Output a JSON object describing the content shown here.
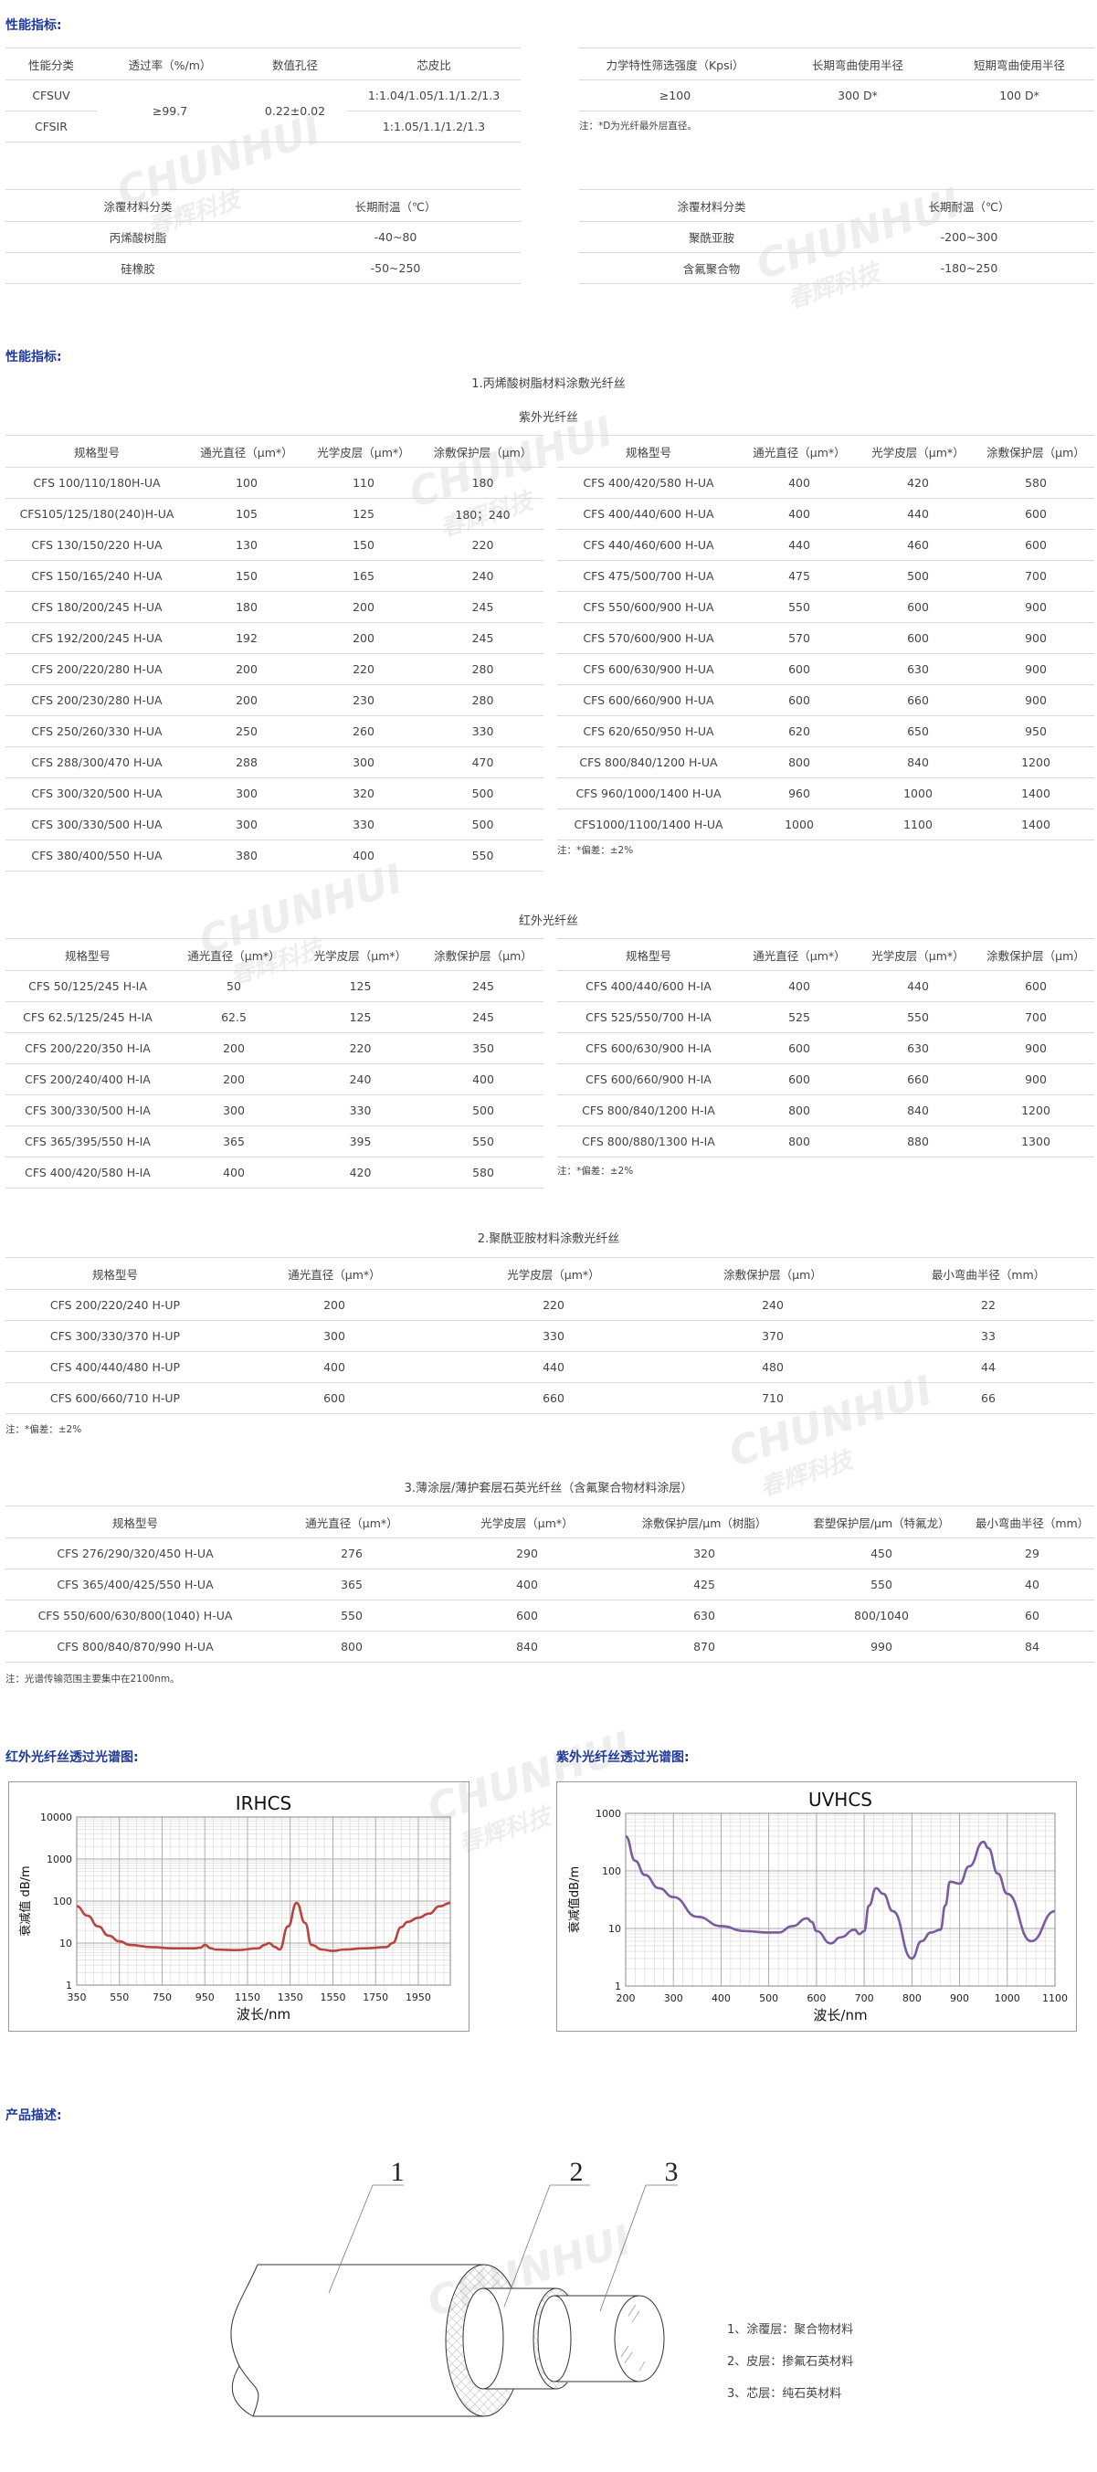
{
  "watermark": {
    "en": "CHUNHUI",
    "cn": "春辉科技"
  },
  "section1": {
    "heading": "性能指标:",
    "optical_table": {
      "headers": [
        "性能分类",
        "透过率（%/m）",
        "数值孔径",
        "芯皮比"
      ],
      "rows": [
        {
          "type": "CFSUV",
          "ratio": "1:1.04/1.05/1.1/1.2/1.3"
        },
        {
          "type": "CFSIR",
          "ratio": "1:1.05/1.1/1.2/1.3"
        }
      ],
      "transmittance": "≥99.7",
      "na": "0.22±0.02"
    },
    "mech_table": {
      "headers": [
        "力学特性筛选强度（Kpsi）",
        "长期弯曲使用半径",
        "短期弯曲使用半径"
      ],
      "row": [
        "≥100",
        "300 D*",
        "100 D*"
      ],
      "note": "注：*D为光纤最外层直径。"
    },
    "coating_left": {
      "headers": [
        "涂覆材料分类",
        "长期耐温（℃）"
      ],
      "rows": [
        [
          "丙烯酸树脂",
          "-40~80"
        ],
        [
          "硅橡胶",
          "-50~250"
        ]
      ]
    },
    "coating_right": {
      "headers": [
        "涂覆材料分类",
        "长期耐温（℃）"
      ],
      "rows": [
        [
          "聚酰亚胺",
          "-200~300"
        ],
        [
          "含氟聚合物",
          "-180~250"
        ]
      ]
    }
  },
  "section2": {
    "heading": "性能指标:",
    "group1_title": "1.丙烯酸树脂材料涂敷光纤丝",
    "uv_title": "紫外光纤丝",
    "headers4": [
      "规格型号",
      "通光直径（μm*）",
      "光学皮层（μm*）",
      "涂敷保护层（μm）"
    ],
    "uv_left": [
      [
        "CFS 100/110/180H-UA",
        "100",
        "110",
        "180"
      ],
      [
        "CFS105/125/180(240)H-UA",
        "105",
        "125",
        "180；240"
      ],
      [
        "CFS 130/150/220 H-UA",
        "130",
        "150",
        "220"
      ],
      [
        "CFS 150/165/240 H-UA",
        "150",
        "165",
        "240"
      ],
      [
        "CFS 180/200/245 H-UA",
        "180",
        "200",
        "245"
      ],
      [
        "CFS 192/200/245 H-UA",
        "192",
        "200",
        "245"
      ],
      [
        "CFS 200/220/280 H-UA",
        "200",
        "220",
        "280"
      ],
      [
        "CFS 200/230/280 H-UA",
        "200",
        "230",
        "280"
      ],
      [
        "CFS 250/260/330 H-UA",
        "250",
        "260",
        "330"
      ],
      [
        "CFS 288/300/470 H-UA",
        "288",
        "300",
        "470"
      ],
      [
        "CFS 300/320/500 H-UA",
        "300",
        "320",
        "500"
      ],
      [
        "CFS 300/330/500 H-UA",
        "300",
        "330",
        "500"
      ],
      [
        "CFS 380/400/550 H-UA",
        "380",
        "400",
        "550"
      ]
    ],
    "uv_right": [
      [
        "CFS 400/420/580 H-UA",
        "400",
        "420",
        "580"
      ],
      [
        "CFS 400/440/600 H-UA",
        "400",
        "440",
        "600"
      ],
      [
        "CFS 440/460/600 H-UA",
        "440",
        "460",
        "600"
      ],
      [
        "CFS 475/500/700 H-UA",
        "475",
        "500",
        "700"
      ],
      [
        "CFS 550/600/900 H-UA",
        "550",
        "600",
        "900"
      ],
      [
        "CFS 570/600/900 H-UA",
        "570",
        "600",
        "900"
      ],
      [
        "CFS 600/630/900 H-UA",
        "600",
        "630",
        "900"
      ],
      [
        "CFS 600/660/900 H-UA",
        "600",
        "660",
        "900"
      ],
      [
        "CFS 620/650/950 H-UA",
        "620",
        "650",
        "950"
      ],
      [
        "CFS 800/840/1200 H-UA",
        "800",
        "840",
        "1200"
      ],
      [
        "CFS 960/1000/1400 H-UA",
        "960",
        "1000",
        "1400"
      ],
      [
        "CFS1000/1100/1400 H-UA",
        "1000",
        "1100",
        "1400"
      ]
    ],
    "uv_note": "注：*偏差：±2%",
    "ir_title": "红外光纤丝",
    "ir_left": [
      [
        "CFS 50/125/245 H-IA",
        "50",
        "125",
        "245"
      ],
      [
        "CFS 62.5/125/245 H-IA",
        "62.5",
        "125",
        "245"
      ],
      [
        "CFS 200/220/350 H-IA",
        "200",
        "220",
        "350"
      ],
      [
        "CFS 200/240/400 H-IA",
        "200",
        "240",
        "400"
      ],
      [
        "CFS 300/330/500 H-IA",
        "300",
        "330",
        "500"
      ],
      [
        "CFS 365/395/550 H-IA",
        "365",
        "395",
        "550"
      ],
      [
        "CFS 400/420/580 H-IA",
        "400",
        "420",
        "580"
      ]
    ],
    "ir_right": [
      [
        "CFS 400/440/600 H-IA",
        "400",
        "440",
        "600"
      ],
      [
        "CFS 525/550/700 H-IA",
        "525",
        "550",
        "700"
      ],
      [
        "CFS 600/630/900 H-IA",
        "600",
        "630",
        "900"
      ],
      [
        "CFS 600/660/900 H-IA",
        "600",
        "660",
        "900"
      ],
      [
        "CFS 800/840/1200 H-IA",
        "800",
        "840",
        "1200"
      ],
      [
        "CFS 800/880/1300 H-IA",
        "800",
        "880",
        "1300"
      ]
    ],
    "ir_note": "注：*偏差：±2%",
    "group2_title": "2.聚酰亚胺材料涂敷光纤丝",
    "pi_headers": [
      "规格型号",
      "通光直径（μm*）",
      "光学皮层（μm*）",
      "涂敷保护层（μm）",
      "最小弯曲半径（mm）"
    ],
    "pi_rows": [
      [
        "CFS 200/220/240 H-UP",
        "200",
        "220",
        "240",
        "22"
      ],
      [
        "CFS 300/330/370 H-UP",
        "300",
        "330",
        "370",
        "33"
      ],
      [
        "CFS 400/440/480 H-UP",
        "400",
        "440",
        "480",
        "44"
      ],
      [
        "CFS 600/660/710 H-UP",
        "600",
        "660",
        "710",
        "66"
      ]
    ],
    "pi_note": "注：*偏差：±2%",
    "group3_title": "3.薄涂层/薄护套层石英光纤丝（含氟聚合物材料涂层）",
    "fp_headers": [
      "规格型号",
      "通光直径（μm*）",
      "光学皮层（μm*）",
      "涂敷保护层/μm（树脂）",
      "套塑保护层/μm（特氟龙）",
      "最小弯曲半径（mm）"
    ],
    "fp_rows": [
      [
        "CFS 276/290/320/450 H-UA",
        "276",
        "290",
        "320",
        "450",
        "29"
      ],
      [
        "CFS 365/400/425/550 H-UA",
        "365",
        "400",
        "425",
        "550",
        "40"
      ],
      [
        "CFS 550/600/630/800(1040) H-UA",
        "550",
        "600",
        "630",
        "800/1040",
        "60"
      ],
      [
        "CFS 800/840/870/990 H-UA",
        "800",
        "840",
        "870",
        "990",
        "84"
      ]
    ],
    "fp_note": "注：光谱传输范围主要集中在2100nm。"
  },
  "charts_headings": {
    "ir": "红外光纤丝透过光谱图:",
    "uv": "紫外光纤丝透过光谱图:"
  },
  "chart_data": [
    {
      "type": "line",
      "title": "IRHCS",
      "xlabel": "波长/nm",
      "ylabel": "衰减值  dB/m",
      "x_ticks": [
        350,
        550,
        750,
        950,
        1150,
        1350,
        1550,
        1750,
        1950
      ],
      "y_ticks": [
        1,
        10,
        100,
        1000,
        10000
      ],
      "xlim": [
        350,
        2100
      ],
      "ylim": [
        1,
        10000
      ],
      "y_scale": "log",
      "grid": true,
      "color": "#b8443f",
      "x": [
        350,
        400,
        450,
        500,
        550,
        600,
        700,
        800,
        900,
        930,
        950,
        980,
        1000,
        1100,
        1200,
        1230,
        1250,
        1280,
        1300,
        1340,
        1380,
        1420,
        1450,
        1500,
        1550,
        1600,
        1700,
        1800,
        1830,
        1870,
        1900,
        1950,
        2000,
        2050,
        2100
      ],
      "y": [
        75,
        45,
        25,
        15,
        11,
        9,
        8,
        7.5,
        7.5,
        7.8,
        9,
        7.5,
        7,
        6.8,
        7.5,
        9,
        10,
        8,
        7,
        25,
        90,
        30,
        9,
        7,
        6.5,
        7,
        7.5,
        8,
        10,
        24,
        32,
        40,
        50,
        75,
        90
      ]
    },
    {
      "type": "line",
      "title": "UVHCS",
      "xlabel": "波长/nm",
      "ylabel": "衰减值dB/m",
      "x_ticks": [
        200,
        300,
        400,
        500,
        600,
        700,
        800,
        900,
        1000,
        1100
      ],
      "y_ticks": [
        1,
        10,
        100,
        1000
      ],
      "xlim": [
        200,
        1100
      ],
      "ylim": [
        1,
        1000
      ],
      "y_scale": "log",
      "grid": true,
      "color": "#7a5aa0",
      "x": [
        200,
        220,
        240,
        270,
        300,
        350,
        400,
        450,
        500,
        520,
        550,
        580,
        590,
        600,
        630,
        650,
        680,
        690,
        700,
        710,
        725,
        740,
        760,
        800,
        820,
        840,
        860,
        870,
        880,
        900,
        920,
        950,
        960,
        980,
        1000,
        1050,
        1100
      ],
      "y": [
        400,
        150,
        85,
        50,
        35,
        16,
        11,
        9,
        8.5,
        8.5,
        11,
        15,
        13,
        9,
        5.5,
        7,
        9.5,
        8,
        9,
        25,
        50,
        40,
        20,
        3,
        6,
        8.5,
        9.5,
        25,
        65,
        60,
        120,
        320,
        250,
        90,
        40,
        6,
        20
      ]
    }
  ],
  "product": {
    "heading": "产品描述:",
    "callouts": [
      "1",
      "2",
      "3"
    ],
    "legend": [
      "1、涂覆层：聚合物材料",
      "2、皮层：掺氟石英材料",
      "3、芯层：纯石英材料"
    ]
  }
}
